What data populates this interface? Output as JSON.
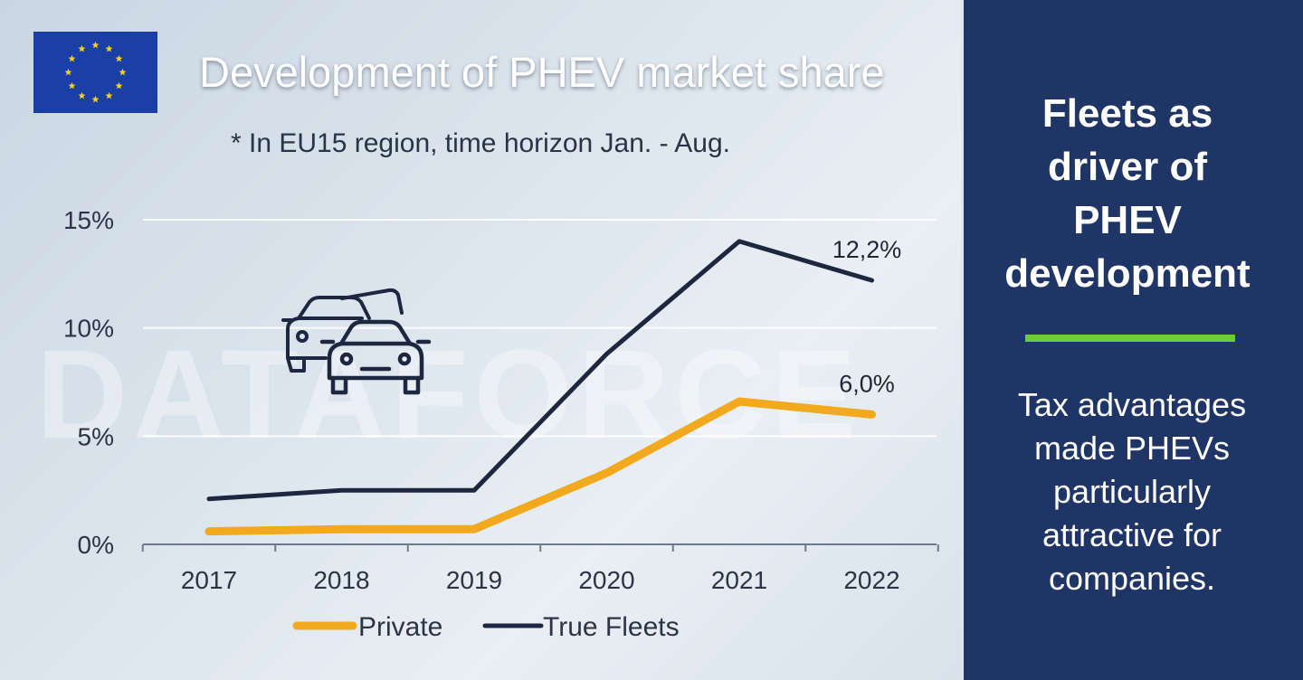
{
  "colors": {
    "private": "#f2a91e",
    "true_fleets": "#1e2740",
    "side_panel_bg": "#1f3566",
    "divider": "#6ccd3c",
    "eu_flag_bg": "#1a3fa6",
    "eu_flag_stars": "#f4d31a"
  },
  "icons": {
    "flag": "eu-flag-icon",
    "cars": "cars-icon"
  },
  "watermark": "DATAFORCE",
  "chart_data": {
    "type": "line",
    "title": "Development of PHEV market share",
    "subtitle": "* In EU15 region, time horizon Jan. - Aug.",
    "categories": [
      "2017",
      "2018",
      "2019",
      "2020",
      "2021",
      "2022"
    ],
    "series": [
      {
        "name": "Private",
        "values": [
          0.6,
          0.7,
          0.7,
          3.3,
          6.6,
          6.0
        ]
      },
      {
        "name": "True Fleets",
        "values": [
          2.1,
          2.5,
          2.5,
          8.8,
          14.0,
          12.2
        ]
      }
    ],
    "y_ticks": [
      "0%",
      "5%",
      "10%",
      "15%"
    ],
    "y_tick_values": [
      0,
      5,
      10,
      15
    ],
    "ylim": [
      0,
      15
    ],
    "annotations": [
      {
        "series": "True Fleets",
        "category": "2022",
        "text": "12,2%"
      },
      {
        "series": "Private",
        "category": "2022",
        "text": "6,0%"
      }
    ],
    "grid": true,
    "legend_position": "bottom"
  },
  "side_panel": {
    "heading": "Fleets as driver of PHEV development",
    "text": "Tax advantages made PHEVs particularly attractive for companies."
  }
}
